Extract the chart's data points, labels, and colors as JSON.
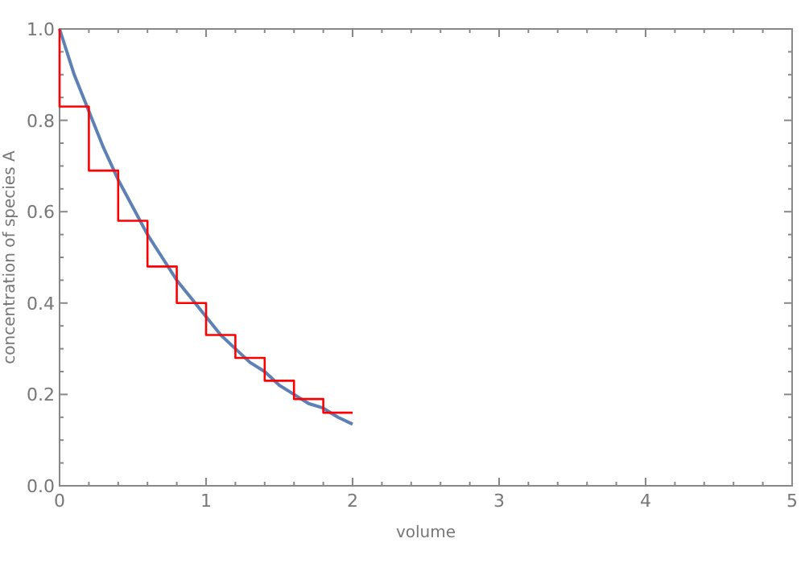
{
  "chart_data": {
    "type": "line",
    "xlabel": "volume",
    "ylabel": "concentration of species A",
    "xlim": [
      0,
      5
    ],
    "ylim": [
      0,
      1
    ],
    "xticks": [
      0,
      {
        "value": 0.2,
        "label": null
      },
      {
        "value": 0.4,
        "label": null
      },
      {
        "value": 0.6,
        "label": null
      },
      {
        "value": 0.8,
        "label": null
      },
      1,
      {
        "value": 1.2,
        "label": null
      },
      {
        "value": 1.4,
        "label": null
      },
      {
        "value": 1.6,
        "label": null
      },
      {
        "value": 1.8,
        "label": null
      },
      2,
      {
        "value": 2.2,
        "label": null
      },
      {
        "value": 2.4,
        "label": null
      },
      {
        "value": 2.6,
        "label": null
      },
      {
        "value": 2.8,
        "label": null
      },
      3,
      {
        "value": 3.2,
        "label": null
      },
      {
        "value": 3.4,
        "label": null
      },
      {
        "value": 3.6,
        "label": null
      },
      {
        "value": 3.8,
        "label": null
      },
      4,
      {
        "value": 4.2,
        "label": null
      },
      {
        "value": 4.4,
        "label": null
      },
      {
        "value": 4.6,
        "label": null
      },
      {
        "value": 4.8,
        "label": null
      },
      5
    ],
    "yticks": [
      {
        "value": 0,
        "label": "0.0"
      },
      {
        "value": 0.05,
        "label": null
      },
      {
        "value": 0.1,
        "label": null
      },
      {
        "value": 0.15,
        "label": null
      },
      {
        "value": 0.2,
        "label": "0.2"
      },
      {
        "value": 0.25,
        "label": null
      },
      {
        "value": 0.3,
        "label": null
      },
      {
        "value": 0.35,
        "label": null
      },
      {
        "value": 0.4,
        "label": "0.4"
      },
      {
        "value": 0.45,
        "label": null
      },
      {
        "value": 0.5,
        "label": null
      },
      {
        "value": 0.55,
        "label": null
      },
      {
        "value": 0.6,
        "label": "0.6"
      },
      {
        "value": 0.65,
        "label": null
      },
      {
        "value": 0.7,
        "label": null
      },
      {
        "value": 0.75,
        "label": null
      },
      {
        "value": 0.8,
        "label": "0.8"
      },
      {
        "value": 0.85,
        "label": null
      },
      {
        "value": 0.9,
        "label": null
      },
      {
        "value": 0.95,
        "label": null
      },
      {
        "value": 1,
        "label": "1.0"
      }
    ],
    "grid": false,
    "series": [
      {
        "color": "#5e81b5",
        "x": [
          0,
          0.1,
          0.2,
          0.3,
          0.4,
          0.5,
          0.6,
          0.7,
          0.8,
          0.9,
          1,
          1.1,
          1.2,
          1.3,
          1.4,
          1.5,
          1.6,
          1.7,
          1.8,
          1.9,
          2
        ],
        "values": [
          1,
          0.9,
          0.82,
          0.74,
          0.67,
          0.61,
          0.55,
          0.5,
          0.45,
          0.41,
          0.37,
          0.33,
          0.3,
          0.27,
          0.25,
          0.22,
          0.2,
          0.18,
          0.17,
          0.15,
          0.135
        ]
      },
      {
        "type": "step",
        "color": "#ff0000",
        "x": [
          0,
          0,
          0.2,
          0.4,
          0.6,
          0.8,
          1,
          1.2,
          1.4,
          1.6,
          1.8,
          2
        ],
        "values": [
          1,
          0.83,
          0.69,
          0.58,
          0.48,
          0.4,
          0.33,
          0.28,
          0.23,
          0.19,
          0.16,
          0.16
        ]
      }
    ]
  }
}
